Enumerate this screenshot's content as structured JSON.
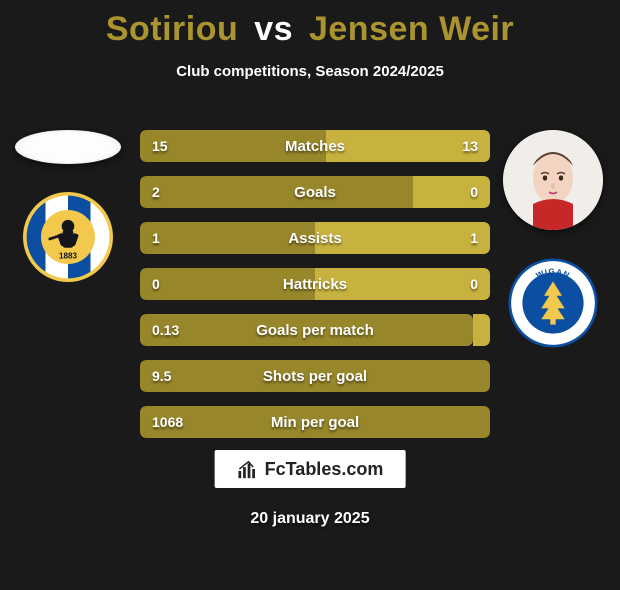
{
  "title": {
    "player1": "Sotiriou",
    "vs": "vs",
    "player2": "Jensen Weir",
    "color_p1": "#a99430",
    "color_p2": "#a99430"
  },
  "subtitle": "Club competitions, Season 2024/2025",
  "colors": {
    "left_bar": "#97862a",
    "right_bar": "#c7b23f",
    "background": "#1a1a1a",
    "text": "#ffffff"
  },
  "bars": [
    {
      "label": "Matches",
      "left": "15",
      "right": "13",
      "left_pct": 53,
      "right_pct": 47,
      "mode": "split"
    },
    {
      "label": "Goals",
      "left": "2",
      "right": "0",
      "left_pct": 78,
      "right_pct": 22,
      "mode": "split"
    },
    {
      "label": "Assists",
      "left": "1",
      "right": "1",
      "left_pct": 50,
      "right_pct": 50,
      "mode": "split"
    },
    {
      "label": "Hattricks",
      "left": "0",
      "right": "0",
      "left_pct": 50,
      "right_pct": 50,
      "mode": "split"
    },
    {
      "label": "Goals per match",
      "left": "0.13",
      "right": "",
      "left_pct": 95,
      "right_pct": 5,
      "mode": "left-only"
    },
    {
      "label": "Shots per goal",
      "left": "9.5",
      "right": "",
      "left_pct": 100,
      "right_pct": 0,
      "mode": "left-only"
    },
    {
      "label": "Min per goal",
      "left": "1068",
      "right": "",
      "left_pct": 100,
      "right_pct": 0,
      "mode": "left-only"
    }
  ],
  "clubs": {
    "left": {
      "name": "Bristol Rovers FC",
      "year": "1883",
      "primary": "#0b4ea2",
      "accent": "#f2c94c"
    },
    "right": {
      "name": "Wigan Athletic",
      "primary": "#0b4ea2",
      "accent": "#ffffff"
    }
  },
  "branding": "FcTables.com",
  "date": "20 january 2025"
}
